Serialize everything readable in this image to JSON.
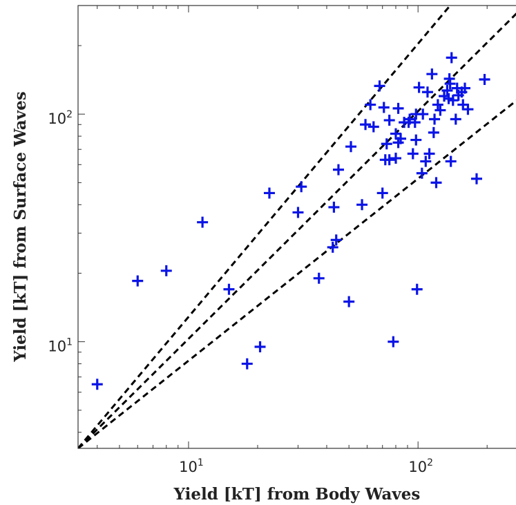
{
  "chart_data": {
    "type": "scatter",
    "title": "",
    "xlabel": "Yield [kT] from Body Waves",
    "ylabel": "Yield [kT] from Surface Waves",
    "xscale": "log",
    "yscale": "log",
    "xlim": [
      3.3,
      320
    ],
    "ylim": [
      3.4,
      300
    ],
    "grid": false,
    "marker": "plus",
    "marker_color": "#0a14e6",
    "line_color": "#000000",
    "x_ticks": [
      {
        "base": "10",
        "exp": "1"
      },
      {
        "base": "10",
        "exp": "2"
      }
    ],
    "y_ticks": [
      {
        "base": "10",
        "exp": "1"
      },
      {
        "base": "10",
        "exp": "2"
      }
    ],
    "reference_lines": [
      {
        "style": "dashed",
        "slope": 1.2
      },
      {
        "style": "dashed",
        "slope": 1.0
      },
      {
        "style": "dashed",
        "slope": 0.8
      }
    ],
    "series": [
      {
        "points": [
          [
            4,
            6.5
          ],
          [
            6,
            18.5
          ],
          [
            8,
            20.5
          ],
          [
            11.5,
            33.5
          ],
          [
            15,
            17
          ],
          [
            18,
            8
          ],
          [
            20.5,
            9.5
          ],
          [
            22.5,
            45
          ],
          [
            30,
            37
          ],
          [
            31,
            48
          ],
          [
            37,
            19
          ],
          [
            42.5,
            26
          ],
          [
            43,
            39
          ],
          [
            44,
            28
          ],
          [
            45,
            57
          ],
          [
            50,
            15
          ],
          [
            51,
            72
          ],
          [
            57,
            40
          ],
          [
            59,
            90
          ],
          [
            62,
            110
          ],
          [
            64,
            88
          ],
          [
            68,
            133
          ],
          [
            70,
            45
          ],
          [
            71,
            107
          ],
          [
            72,
            63
          ],
          [
            73,
            74
          ],
          [
            75,
            94
          ],
          [
            75,
            63
          ],
          [
            78,
            10
          ],
          [
            80,
            64
          ],
          [
            80,
            82
          ],
          [
            82,
            75
          ],
          [
            82,
            106
          ],
          [
            84,
            78
          ],
          [
            87,
            92
          ],
          [
            91,
            92
          ],
          [
            92,
            95
          ],
          [
            95,
            67
          ],
          [
            97,
            92
          ],
          [
            98,
            100
          ],
          [
            98,
            77
          ],
          [
            99,
            17
          ],
          [
            101,
            131
          ],
          [
            104,
            55
          ],
          [
            105,
            100
          ],
          [
            108,
            62
          ],
          [
            110,
            125
          ],
          [
            112,
            67
          ],
          [
            115,
            150
          ],
          [
            117,
            83
          ],
          [
            118,
            95
          ],
          [
            120,
            50
          ],
          [
            122,
            110
          ],
          [
            125,
            104
          ],
          [
            130,
            120
          ],
          [
            134,
            127
          ],
          [
            136,
            117
          ],
          [
            137,
            143
          ],
          [
            138,
            136
          ],
          [
            139,
            62
          ],
          [
            140,
            177
          ],
          [
            142,
            115
          ],
          [
            146,
            95
          ],
          [
            148,
            130
          ],
          [
            150,
            121
          ],
          [
            155,
            125
          ],
          [
            157,
            110
          ],
          [
            160,
            130
          ],
          [
            165,
            105
          ],
          [
            180,
            52
          ],
          [
            195,
            142
          ]
        ]
      }
    ]
  }
}
